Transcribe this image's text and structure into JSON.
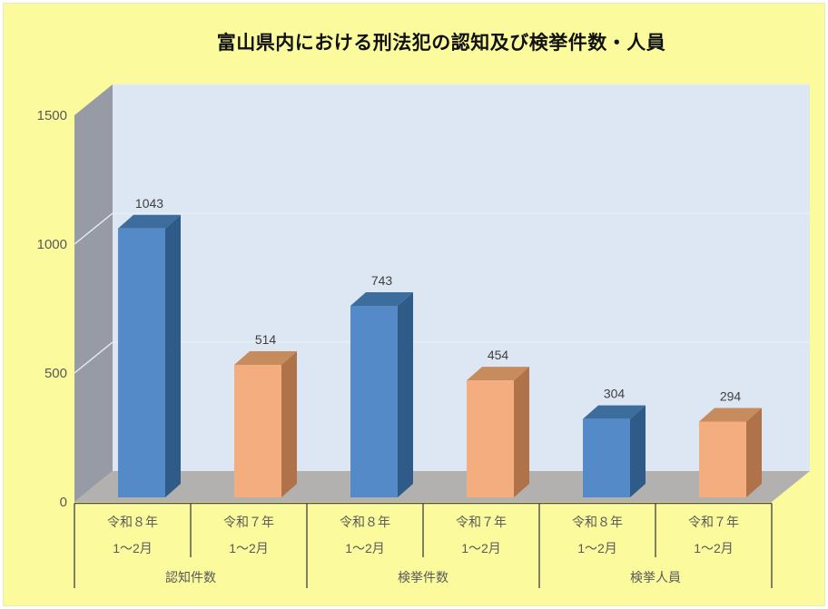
{
  "chart_data": {
    "type": "bar",
    "style": "3d-column",
    "title": "富山県内における刑法犯の認知及び検挙件数・人員",
    "y_axis": {
      "min": 0,
      "max": 1500,
      "ticks": [
        0,
        500,
        1000,
        1500
      ],
      "grid": true
    },
    "legend": "none",
    "groups": [
      {
        "label": "認知件数",
        "bars": [
          {
            "year": "令和８年",
            "months": "1〜2月",
            "value": 1043,
            "series": "reiwa8"
          },
          {
            "year": "令和７年",
            "months": "1〜2月",
            "value": 514,
            "series": "reiwa7"
          }
        ]
      },
      {
        "label": "検挙件数",
        "bars": [
          {
            "year": "令和８年",
            "months": "1〜2月",
            "value": 743,
            "series": "reiwa8"
          },
          {
            "year": "令和７年",
            "months": "1〜2月",
            "value": 454,
            "series": "reiwa7"
          }
        ]
      },
      {
        "label": "検挙人員",
        "bars": [
          {
            "year": "令和８年",
            "months": "1〜2月",
            "value": 304,
            "series": "reiwa8"
          },
          {
            "year": "令和７年",
            "months": "1〜2月",
            "value": 294,
            "series": "reiwa7"
          }
        ]
      }
    ],
    "series_colors": {
      "reiwa8": {
        "front": "#538ac7",
        "top": "#3d6d9d",
        "side": "#2e5b88"
      },
      "reiwa7": {
        "front": "#f3ad7e",
        "top": "#c78c5d",
        "side": "#b07248"
      }
    }
  },
  "colors": {
    "background": "#fbfb9d",
    "page_border": "#ffffff",
    "back_wall": "#dce7f3",
    "side_wall": "#969ba5",
    "floor": "#b3b1af",
    "gridline": "#e9edf3",
    "axis_line": "#4d4d4d",
    "axis_text": "#595959",
    "value_label": "#3f3f3f",
    "title_color": "#111111"
  }
}
